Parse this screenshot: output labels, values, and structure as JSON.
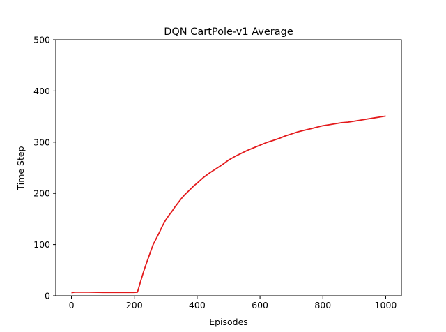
{
  "chart_data": {
    "type": "line",
    "title": "DQN CartPole-v1 Average",
    "xlabel": "Episodes",
    "ylabel": "Time Step",
    "xlim": [
      -50,
      1050
    ],
    "ylim": [
      0,
      500
    ],
    "xticks": [
      0,
      200,
      400,
      600,
      800,
      1000
    ],
    "yticks": [
      0,
      100,
      200,
      300,
      400,
      500
    ],
    "grid": false,
    "legend": "none",
    "series": [
      {
        "color": "#e31a1c",
        "x": [
          0,
          10,
          50,
          100,
          150,
          200,
          210,
          220,
          230,
          240,
          250,
          260,
          270,
          280,
          290,
          300,
          310,
          320,
          330,
          340,
          350,
          360,
          370,
          380,
          390,
          400,
          420,
          440,
          460,
          480,
          500,
          520,
          540,
          560,
          580,
          600,
          620,
          640,
          660,
          680,
          700,
          720,
          740,
          760,
          780,
          800,
          820,
          840,
          860,
          880,
          900,
          920,
          940,
          960,
          980,
          1000
        ],
        "y": [
          6,
          7,
          7,
          6.5,
          6.5,
          6.5,
          7,
          28,
          48,
          66,
          83,
          100,
          112,
          124,
          137,
          148,
          157,
          165,
          174,
          182,
          190,
          197,
          203,
          209,
          215,
          220,
          231,
          240,
          248,
          256,
          265,
          272,
          278,
          284,
          289,
          294,
          299,
          303,
          307,
          312,
          316,
          320,
          323,
          326,
          329,
          332,
          334,
          336,
          338,
          339,
          341,
          343,
          345,
          347,
          349,
          351
        ]
      }
    ]
  }
}
